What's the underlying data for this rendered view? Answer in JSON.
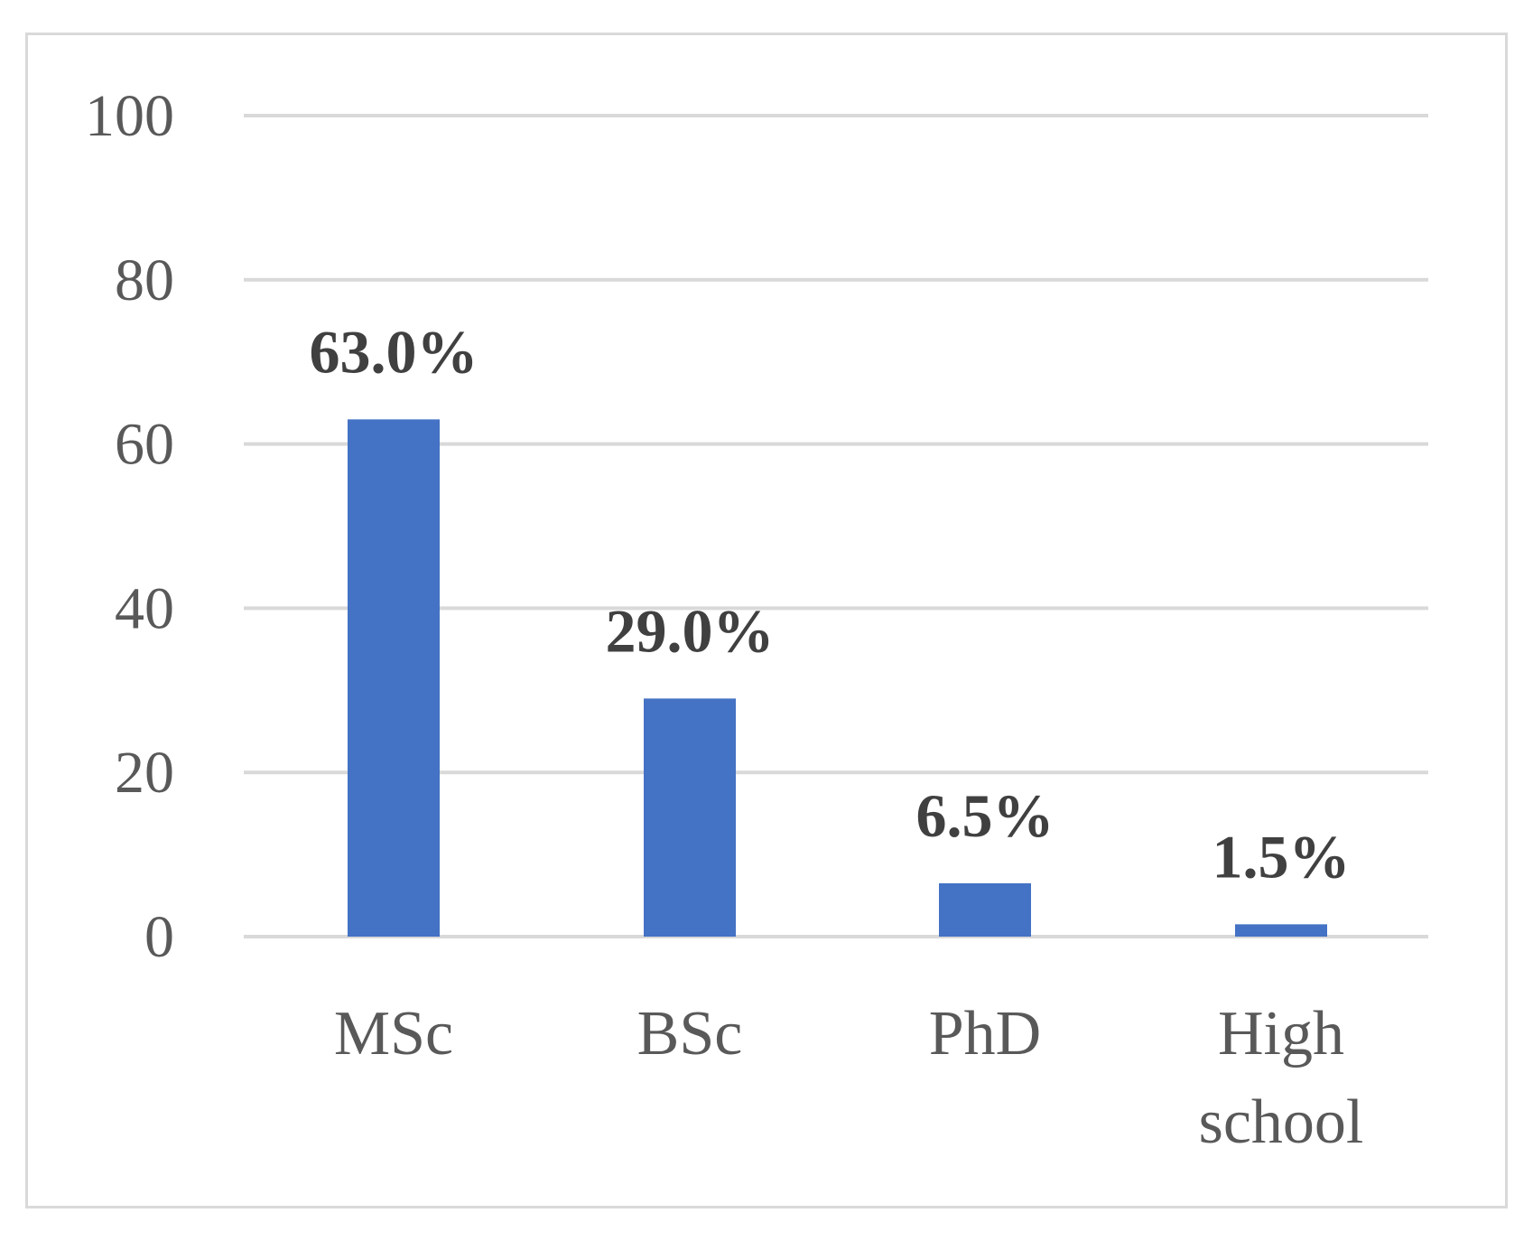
{
  "chart_data": {
    "type": "bar",
    "categories": [
      "MSc",
      "BSc",
      "PhD",
      "High school"
    ],
    "values": [
      63.0,
      29.0,
      6.5,
      1.5
    ],
    "data_labels": [
      "63.0%",
      "29.0%",
      "6.5%",
      "1.5%"
    ],
    "yticks": [
      "0",
      "20",
      "40",
      "60",
      "80",
      "100"
    ],
    "ylim": [
      0,
      100
    ],
    "grid": true,
    "legend": "none",
    "bar_color": "#4472c4"
  }
}
